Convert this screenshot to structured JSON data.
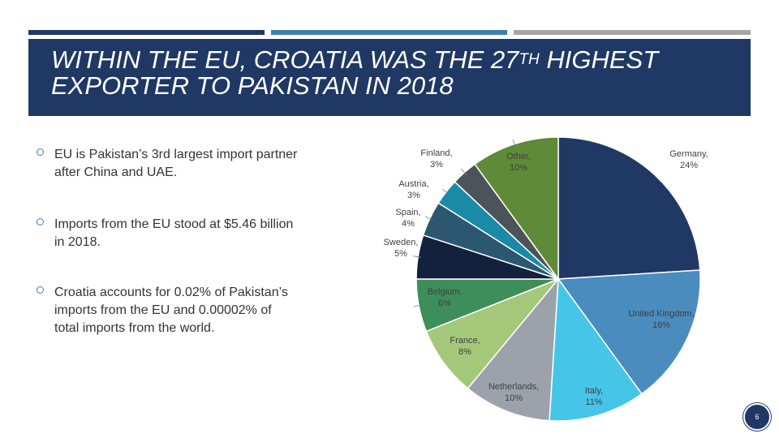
{
  "slide": {
    "title_line1_a": "WITHIN THE EU, CROATIA WAS THE 27",
    "title_sup": "TH",
    "title_line1_b": " HIGHEST",
    "title_line2": "EXPORTER TO PAKISTAN IN 2018",
    "bullets": [
      "EU is Pakistan’s 3rd largest import partner after China and UAE.",
      "Imports from the EU stood at $5.46 billion in 2018.",
      "Croatia accounts for 0.02% of Pakistan’s imports from the EU and 0.00002% of total imports from the world."
    ],
    "page_number": "6",
    "colors": {
      "band": "#1f3864",
      "accent_blue": "#3f7fae",
      "accent_gray": "#a6a6a6"
    }
  },
  "chart_data": {
    "type": "pie",
    "title": "",
    "start": "12 o'clock, clockwise",
    "slices": [
      {
        "name": "Germany",
        "value": 24,
        "label": "24%",
        "color": "#1f3864"
      },
      {
        "name": "United Kingdom",
        "value": 16,
        "label": "16%",
        "color": "#4a8cbd"
      },
      {
        "name": "Italy",
        "value": 11,
        "label": "11%",
        "color": "#45c6e8"
      },
      {
        "name": "Netherlands",
        "value": 10,
        "label": "10%",
        "color": "#9ba2aa"
      },
      {
        "name": "France",
        "value": 8,
        "label": "8%",
        "color": "#a3c87a"
      },
      {
        "name": "Belgium",
        "value": 6,
        "label": "6%",
        "color": "#3e8e5a"
      },
      {
        "name": "Sweden",
        "value": 5,
        "label": "5%",
        "color": "#14213d"
      },
      {
        "name": "Spain",
        "value": 4,
        "label": "4%",
        "color": "#2c5770"
      },
      {
        "name": "Austria",
        "value": 3,
        "label": "3%",
        "color": "#1a8aa6"
      },
      {
        "name": "Finland",
        "value": 3,
        "label": "3%",
        "color": "#4d5459"
      },
      {
        "name": "Other",
        "value": 10,
        "label": "10%",
        "color": "#5f8a37"
      }
    ]
  }
}
